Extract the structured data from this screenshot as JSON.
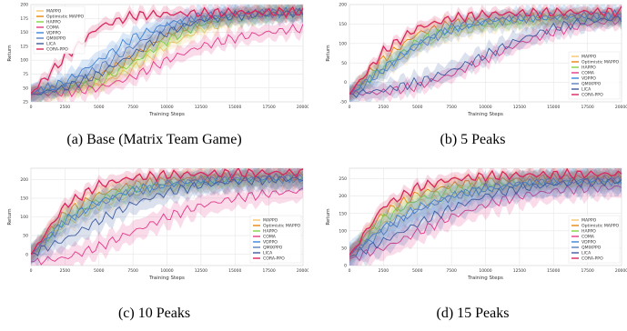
{
  "legend_labels": [
    "MAPPO",
    "Optimistic MAPPO",
    "HAPPO",
    "COMA",
    "VDPPO",
    "QMIXPPO",
    "LICA",
    "CORA-PPO"
  ],
  "series_colors": [
    "#f7c46c",
    "#e8860c",
    "#7fd63f",
    "#e4388a",
    "#3a82d8",
    "#5b7fbf",
    "#3d5a9e",
    "#d9265c"
  ],
  "chart_data": [
    {
      "type": "line",
      "caption": "(a) Base (Matrix Team Game)",
      "xlabel": "Training Steps",
      "ylabel": "Return",
      "xlim": [
        0,
        20000
      ],
      "ylim": [
        25,
        200
      ],
      "xticks": [
        0,
        2500,
        5000,
        7500,
        10000,
        12500,
        15000,
        17500,
        20000
      ],
      "yticks": [
        25,
        50,
        75,
        100,
        125,
        150,
        175,
        200
      ],
      "legend_position": "top-left",
      "grid": true,
      "series": [
        {
          "name": "MAPPO",
          "x": [
            0,
            2500,
            5000,
            7500,
            10000,
            12500,
            15000,
            17500,
            20000
          ],
          "values": [
            40,
            45,
            55,
            85,
            125,
            155,
            172,
            182,
            185
          ],
          "band": 15
        },
        {
          "name": "Optimistic MAPPO",
          "x": [
            0,
            2500,
            5000,
            7500,
            10000,
            12500,
            15000,
            17500,
            20000
          ],
          "values": [
            40,
            50,
            70,
            105,
            145,
            170,
            180,
            186,
            188
          ],
          "band": 15
        },
        {
          "name": "HAPPO",
          "x": [
            0,
            2500,
            5000,
            7500,
            10000,
            12500,
            15000,
            17500,
            20000
          ],
          "values": [
            40,
            48,
            60,
            95,
            135,
            165,
            178,
            184,
            186
          ],
          "band": 15
        },
        {
          "name": "COMA",
          "x": [
            0,
            2500,
            5000,
            7500,
            10000,
            12500,
            15000,
            17500,
            20000
          ],
          "values": [
            38,
            42,
            50,
            70,
            100,
            125,
            140,
            150,
            158
          ],
          "band": 15
        },
        {
          "name": "VDPPO",
          "x": [
            0,
            2500,
            5000,
            7500,
            10000,
            12500,
            15000,
            17500,
            20000
          ],
          "values": [
            40,
            60,
            100,
            140,
            165,
            178,
            182,
            185,
            187
          ],
          "band": 18
        },
        {
          "name": "QMIXPPO",
          "x": [
            0,
            2500,
            5000,
            7500,
            10000,
            12500,
            15000,
            17500,
            20000
          ],
          "values": [
            40,
            55,
            85,
            125,
            160,
            175,
            181,
            184,
            185
          ],
          "band": 18
        },
        {
          "name": "LICA",
          "x": [
            0,
            2500,
            5000,
            7500,
            10000,
            12500,
            15000,
            17500,
            20000
          ],
          "values": [
            38,
            50,
            75,
            110,
            150,
            172,
            180,
            183,
            185
          ],
          "band": 15
        },
        {
          "name": "CORA-PPO",
          "x": [
            0,
            2500,
            5000,
            7500,
            10000,
            12500,
            15000,
            17500,
            20000
          ],
          "values": [
            40,
            105,
            160,
            180,
            183,
            185,
            186,
            186,
            187
          ],
          "band": 12
        }
      ]
    },
    {
      "type": "line",
      "caption": "(b) 5 Peaks",
      "xlabel": "Training Steps",
      "ylabel": "Return",
      "xlim": [
        0,
        20000
      ],
      "ylim": [
        -50,
        200
      ],
      "xticks": [
        0,
        2500,
        5000,
        7500,
        10000,
        12500,
        15000,
        17500,
        20000
      ],
      "yticks": [
        -50,
        0,
        50,
        100,
        150,
        200
      ],
      "legend_position": "bottom-right",
      "grid": true,
      "series": [
        {
          "name": "MAPPO",
          "x": [
            0,
            2500,
            5000,
            7500,
            10000,
            12500,
            15000,
            17500,
            20000
          ],
          "values": [
            -30,
            30,
            90,
            125,
            145,
            155,
            160,
            162,
            163
          ],
          "band": 20
        },
        {
          "name": "Optimistic MAPPO",
          "x": [
            0,
            2500,
            5000,
            7500,
            10000,
            12500,
            15000,
            17500,
            20000
          ],
          "values": [
            -30,
            60,
            125,
            150,
            160,
            165,
            168,
            170,
            170
          ],
          "band": 20
        },
        {
          "name": "HAPPO",
          "x": [
            0,
            2500,
            5000,
            7500,
            10000,
            12500,
            15000,
            17500,
            20000
          ],
          "values": [
            -30,
            40,
            105,
            138,
            152,
            160,
            165,
            167,
            168
          ],
          "band": 20
        },
        {
          "name": "COMA",
          "x": [
            0,
            2500,
            5000,
            7500,
            10000,
            12500,
            15000,
            17500,
            20000
          ],
          "values": [
            -30,
            -25,
            -10,
            20,
            60,
            100,
            130,
            150,
            160
          ],
          "band": 20
        },
        {
          "name": "VDPPO",
          "x": [
            0,
            2500,
            5000,
            7500,
            10000,
            12500,
            15000,
            17500,
            20000
          ],
          "values": [
            -30,
            35,
            100,
            140,
            158,
            166,
            170,
            172,
            173
          ],
          "band": 25
        },
        {
          "name": "QMIXPPO",
          "x": [
            0,
            2500,
            5000,
            7500,
            10000,
            12500,
            15000,
            17500,
            20000
          ],
          "values": [
            -30,
            30,
            95,
            135,
            155,
            163,
            168,
            170,
            171
          ],
          "band": 25
        },
        {
          "name": "LICA",
          "x": [
            0,
            2500,
            5000,
            7500,
            10000,
            12500,
            15000,
            17500,
            20000
          ],
          "values": [
            -30,
            -20,
            0,
            30,
            70,
            110,
            140,
            158,
            165
          ],
          "band": 25
        },
        {
          "name": "CORA-PPO",
          "x": [
            0,
            2500,
            5000,
            7500,
            10000,
            12500,
            15000,
            17500,
            20000
          ],
          "values": [
            -30,
            80,
            140,
            165,
            175,
            178,
            180,
            181,
            182
          ],
          "band": 15
        }
      ]
    },
    {
      "type": "line",
      "caption": "(c) 10 Peaks",
      "xlabel": "Training Steps",
      "ylabel": "Return",
      "xlim": [
        0,
        20000
      ],
      "ylim": [
        -30,
        230
      ],
      "xticks": [
        0,
        2500,
        5000,
        7500,
        10000,
        12500,
        15000,
        17500,
        20000
      ],
      "yticks": [
        0,
        50,
        100,
        150,
        200
      ],
      "legend_position": "bottom-right",
      "grid": true,
      "series": [
        {
          "name": "MAPPO",
          "x": [
            0,
            2500,
            5000,
            7500,
            10000,
            12500,
            15000,
            17500,
            20000
          ],
          "values": [
            0,
            80,
            130,
            160,
            178,
            188,
            193,
            196,
            197
          ],
          "band": 25
        },
        {
          "name": "Optimistic MAPPO",
          "x": [
            0,
            2500,
            5000,
            7500,
            10000,
            12500,
            15000,
            17500,
            20000
          ],
          "values": [
            0,
            110,
            160,
            185,
            198,
            203,
            206,
            207,
            208
          ],
          "band": 25
        },
        {
          "name": "HAPPO",
          "x": [
            0,
            2500,
            5000,
            7500,
            10000,
            12500,
            15000,
            17500,
            20000
          ],
          "values": [
            0,
            95,
            145,
            175,
            190,
            198,
            202,
            204,
            205
          ],
          "band": 25
        },
        {
          "name": "COMA",
          "x": [
            0,
            2500,
            5000,
            7500,
            10000,
            12500,
            15000,
            17500,
            20000
          ],
          "values": [
            -20,
            -10,
            20,
            60,
            100,
            130,
            150,
            162,
            170
          ],
          "band": 30
        },
        {
          "name": "VDPPO",
          "x": [
            0,
            2500,
            5000,
            7500,
            10000,
            12500,
            15000,
            17500,
            20000
          ],
          "values": [
            0,
            90,
            140,
            172,
            188,
            197,
            201,
            203,
            204
          ],
          "band": 30
        },
        {
          "name": "QMIXPPO",
          "x": [
            0,
            2500,
            5000,
            7500,
            10000,
            12500,
            15000,
            17500,
            20000
          ],
          "values": [
            0,
            85,
            135,
            168,
            185,
            195,
            200,
            202,
            203
          ],
          "band": 30
        },
        {
          "name": "LICA",
          "x": [
            0,
            2500,
            5000,
            7500,
            10000,
            12500,
            15000,
            17500,
            20000
          ],
          "values": [
            0,
            40,
            90,
            135,
            165,
            185,
            195,
            200,
            202
          ],
          "band": 30
        },
        {
          "name": "CORA-PPO",
          "x": [
            0,
            2500,
            5000,
            7500,
            10000,
            12500,
            15000,
            17500,
            20000
          ],
          "values": [
            0,
            130,
            185,
            205,
            212,
            215,
            217,
            218,
            218
          ],
          "band": 20
        }
      ]
    },
    {
      "type": "line",
      "caption": "(d) 15 Peaks",
      "xlabel": "Training Steps",
      "ylabel": "Return",
      "xlim": [
        0,
        20000
      ],
      "ylim": [
        0,
        280
      ],
      "xticks": [
        0,
        2500,
        5000,
        7500,
        10000,
        12500,
        15000,
        17500,
        20000
      ],
      "yticks": [
        0,
        50,
        100,
        150,
        200,
        250
      ],
      "legend_position": "bottom-right",
      "grid": true,
      "series": [
        {
          "name": "MAPPO",
          "x": [
            0,
            2500,
            5000,
            7500,
            10000,
            12500,
            15000,
            17500,
            20000
          ],
          "values": [
            30,
            120,
            175,
            205,
            222,
            232,
            238,
            240,
            242
          ],
          "band": 25
        },
        {
          "name": "Optimistic MAPPO",
          "x": [
            0,
            2500,
            5000,
            7500,
            10000,
            12500,
            15000,
            17500,
            20000
          ],
          "values": [
            30,
            150,
            205,
            230,
            242,
            248,
            251,
            253,
            254
          ],
          "band": 25
        },
        {
          "name": "HAPPO",
          "x": [
            0,
            2500,
            5000,
            7500,
            10000,
            12500,
            15000,
            17500,
            20000
          ],
          "values": [
            30,
            135,
            190,
            218,
            232,
            240,
            245,
            247,
            248
          ],
          "band": 25
        },
        {
          "name": "COMA",
          "x": [
            0,
            2500,
            5000,
            7500,
            10000,
            12500,
            15000,
            17500,
            20000
          ],
          "values": [
            20,
            50,
            95,
            140,
            175,
            200,
            215,
            222,
            226
          ],
          "band": 35
        },
        {
          "name": "VDPPO",
          "x": [
            0,
            2500,
            5000,
            7500,
            10000,
            12500,
            15000,
            17500,
            20000
          ],
          "values": [
            30,
            110,
            165,
            200,
            222,
            235,
            242,
            245,
            246
          ],
          "band": 40
        },
        {
          "name": "QMIXPPO",
          "x": [
            0,
            2500,
            5000,
            7500,
            10000,
            12500,
            15000,
            17500,
            20000
          ],
          "values": [
            30,
            100,
            160,
            198,
            220,
            233,
            240,
            243,
            245
          ],
          "band": 35
        },
        {
          "name": "LICA",
          "x": [
            0,
            2500,
            5000,
            7500,
            10000,
            12500,
            15000,
            17500,
            20000
          ],
          "values": [
            25,
            70,
            120,
            165,
            200,
            222,
            235,
            240,
            243
          ],
          "band": 40
        },
        {
          "name": "CORA-PPO",
          "x": [
            0,
            2500,
            5000,
            7500,
            10000,
            12500,
            15000,
            17500,
            20000
          ],
          "values": [
            30,
            170,
            225,
            248,
            257,
            260,
            262,
            263,
            263
          ],
          "band": 20
        }
      ]
    }
  ]
}
